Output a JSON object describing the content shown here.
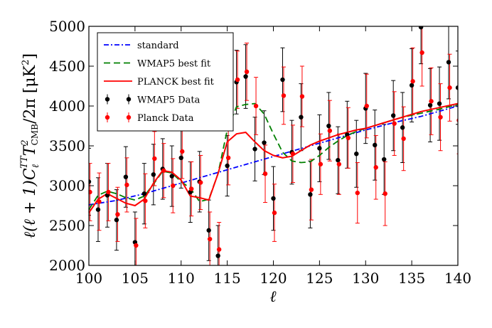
{
  "chart_data": {
    "type": "line",
    "title": "",
    "xlabel": "ℓ",
    "ylabel": "ℓ(ℓ + 1)C_ℓ^{TT}T²_CMB/2π [μK²]",
    "ylabel_parts": {
      "prefix": "ℓ(ℓ + 1)C",
      "sub1": "ℓ",
      "sup1": "TT",
      "mid": "T",
      "sub2": "CMB",
      "sup2": "2",
      "suffix": "/2π [μK",
      "sup3": "2",
      "end": "]"
    },
    "xlim": [
      100,
      140
    ],
    "ylim": [
      2000,
      5000
    ],
    "xticks": [
      100,
      105,
      110,
      115,
      120,
      125,
      130,
      135,
      140
    ],
    "yticks": [
      2000,
      2500,
      3000,
      3500,
      4000,
      4500,
      5000
    ],
    "grid": false,
    "legend": "top-left",
    "lines": [
      {
        "name": "standard",
        "color": "#0000ff",
        "style": "dashdot",
        "x": [
          100,
          103,
          106,
          109,
          112,
          115,
          118,
          121,
          124,
          127,
          130,
          133,
          136,
          140
        ],
        "y": [
          2760,
          2815,
          2900,
          3000,
          3100,
          3200,
          3300,
          3400,
          3500,
          3600,
          3700,
          3790,
          3870,
          4000
        ]
      },
      {
        "name": "WMAP5 best fit",
        "color": "#008000",
        "style": "dashed",
        "x": [
          100,
          101,
          102,
          103,
          104,
          105,
          106,
          107,
          108,
          109,
          110,
          111,
          112,
          113,
          114,
          115,
          116,
          117,
          118,
          119,
          120,
          121,
          122,
          123,
          124,
          125,
          126,
          127,
          128,
          129,
          130,
          132,
          134,
          136,
          138,
          140
        ],
        "y": [
          2700,
          2880,
          2930,
          2900,
          2850,
          2820,
          2870,
          3020,
          3180,
          3160,
          3050,
          2970,
          2800,
          2830,
          3150,
          3700,
          3990,
          4020,
          4030,
          3900,
          3650,
          3420,
          3310,
          3290,
          3300,
          3380,
          3480,
          3560,
          3630,
          3680,
          3720,
          3790,
          3860,
          3910,
          3960,
          4020
        ]
      },
      {
        "name": "PLANCK best fit",
        "color": "#ff0000",
        "style": "solid",
        "x": [
          100,
          101,
          102,
          103,
          104,
          105,
          106,
          107,
          108,
          109,
          110,
          111,
          112,
          113,
          114,
          115,
          116,
          117,
          118,
          119,
          120,
          121,
          122,
          123,
          124,
          125,
          126,
          127,
          128,
          129,
          130,
          132,
          134,
          136,
          138,
          140
        ],
        "y": [
          2660,
          2830,
          2900,
          2840,
          2780,
          2750,
          2830,
          3030,
          3190,
          3170,
          3070,
          2870,
          2850,
          2820,
          3150,
          3550,
          3650,
          3670,
          3550,
          3440,
          3380,
          3350,
          3370,
          3440,
          3510,
          3560,
          3600,
          3640,
          3670,
          3700,
          3720,
          3790,
          3860,
          3930,
          3980,
          4030
        ]
      }
    ],
    "errorbar_series": [
      {
        "name": "WMAP5 Data",
        "color": "#000000",
        "x": [
          100,
          101,
          102,
          103,
          104,
          105,
          106,
          107,
          108,
          109,
          110,
          111,
          112,
          113,
          114,
          115,
          116,
          117,
          118,
          119,
          120,
          121,
          122,
          123,
          124,
          125,
          126,
          127,
          128,
          129,
          130,
          131,
          132,
          133,
          134,
          135,
          136,
          137,
          138,
          139,
          140
        ],
        "y": [
          3050,
          2700,
          2880,
          2570,
          3110,
          2290,
          2900,
          3140,
          3210,
          3120,
          3350,
          2920,
          3050,
          2440,
          2120,
          3250,
          4300,
          4370,
          3460,
          3540,
          2840,
          4330,
          3420,
          3860,
          2890,
          3470,
          3750,
          3320,
          3640,
          3400,
          3970,
          3510,
          3330,
          3880,
          3730,
          4260,
          4990,
          4010,
          4030,
          4550,
          4230
        ],
        "err": [
          420,
          400,
          400,
          380,
          380,
          380,
          380,
          380,
          380,
          380,
          380,
          380,
          380,
          380,
          380,
          380,
          400,
          400,
          400,
          400,
          400,
          400,
          400,
          420,
          420,
          420,
          420,
          420,
          420,
          420,
          440,
          440,
          440,
          440,
          440,
          460,
          460,
          460,
          460,
          460,
          460
        ]
      },
      {
        "name": "Planck Data",
        "color": "#ff0000",
        "x": [
          100,
          101,
          102,
          103,
          104,
          105,
          106,
          107,
          108,
          109,
          110,
          111,
          112,
          113,
          114,
          115,
          116,
          117,
          118,
          119,
          120,
          121,
          122,
          123,
          124,
          125,
          126,
          127,
          128,
          129,
          130,
          131,
          132,
          133,
          134,
          135,
          136,
          137,
          138,
          139,
          140
        ],
        "y": [
          2920,
          2800,
          2920,
          2640,
          3010,
          2250,
          2810,
          3340,
          3190,
          3000,
          3430,
          2960,
          3040,
          2330,
          2200,
          3350,
          4330,
          4430,
          4000,
          3150,
          2660,
          4130,
          3400,
          4120,
          2950,
          3270,
          3690,
          3270,
          3600,
          2910,
          4000,
          3230,
          2900,
          3780,
          3590,
          4310,
          4670,
          4060,
          3860,
          4230,
          3820
        ],
        "err": [
          360,
          360,
          360,
          340,
          340,
          340,
          340,
          340,
          340,
          340,
          340,
          340,
          340,
          340,
          340,
          340,
          360,
          360,
          360,
          360,
          360,
          360,
          360,
          380,
          380,
          380,
          380,
          380,
          380,
          380,
          400,
          400,
          400,
          400,
          400,
          420,
          420,
          420,
          420,
          420,
          420
        ]
      }
    ],
    "legend_entries": [
      "standard",
      "WMAP5 best fit",
      "PLANCK best fit",
      "WMAP5 Data",
      "Planck Data"
    ]
  }
}
